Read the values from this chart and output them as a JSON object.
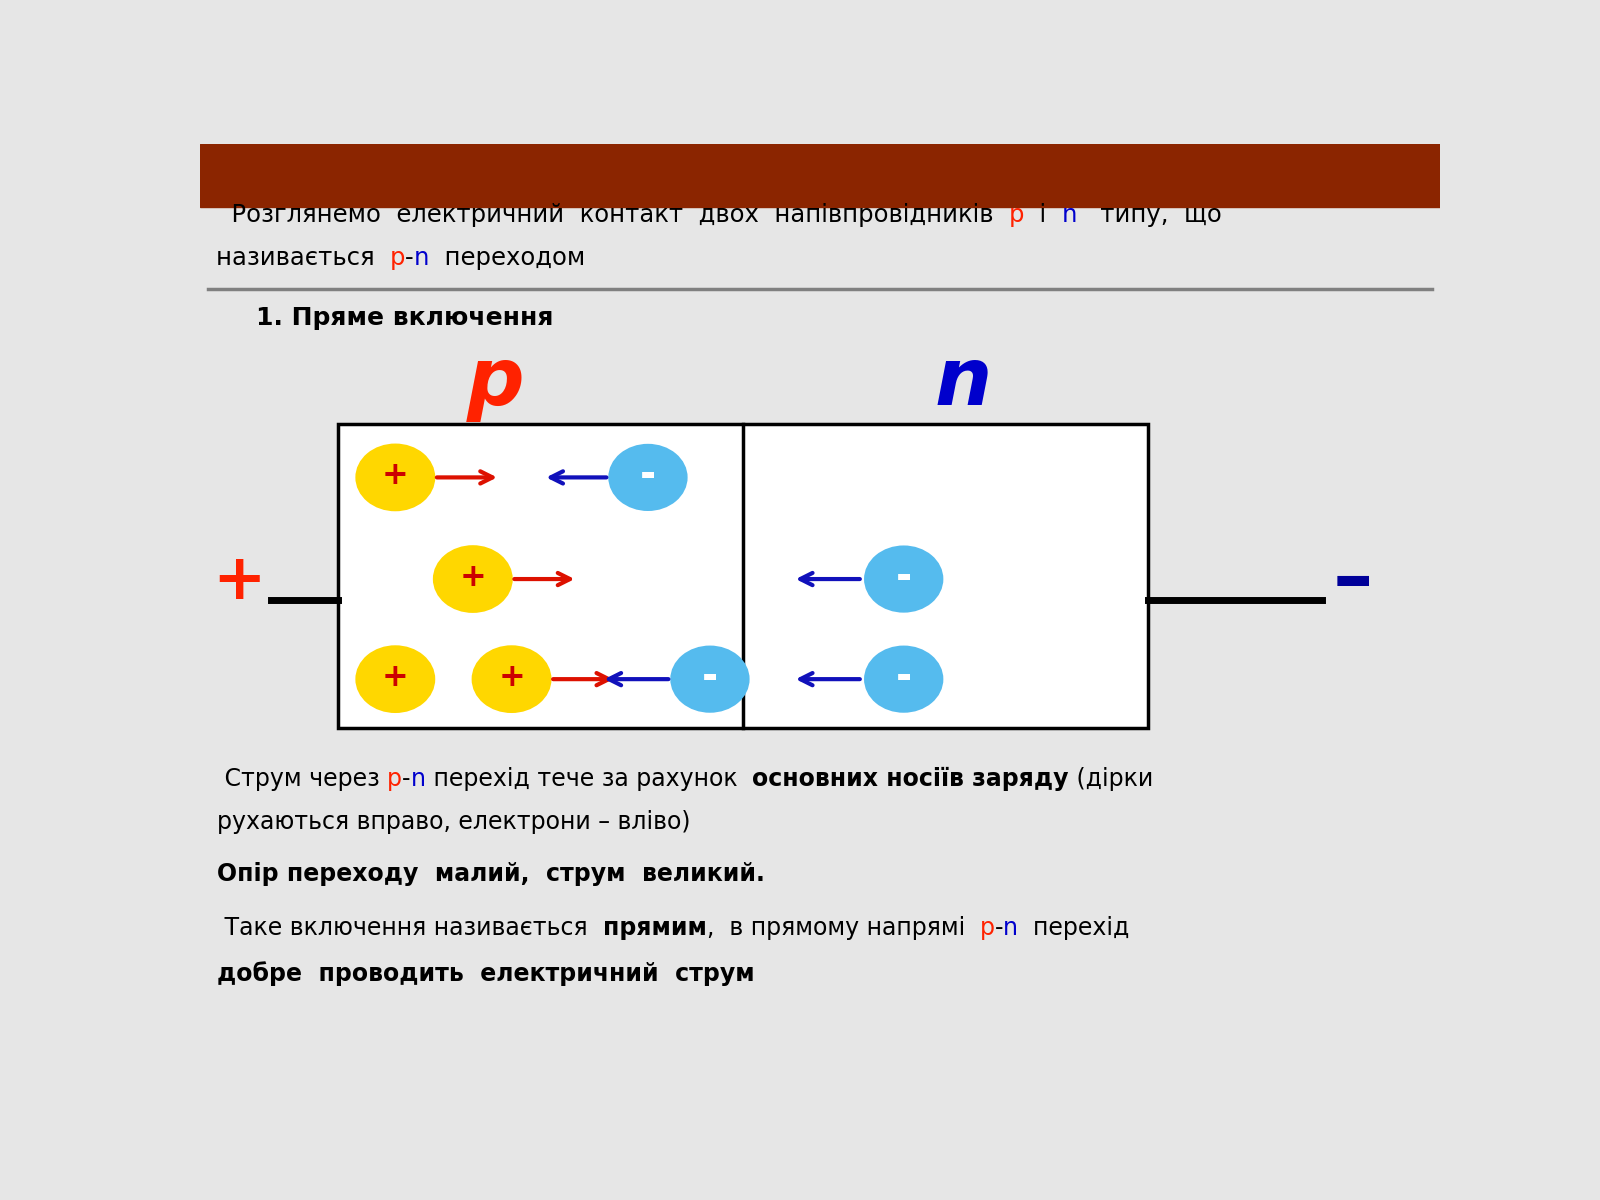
{
  "bg_color": "#e6e6e6",
  "header_color": "#8B2500",
  "red": "#FF2200",
  "blue": "#0000CC",
  "darkblue": "#000099",
  "black": "#000000",
  "yellow": "#FFD700",
  "cyan": "#55BBEE",
  "arrow_red": "#DD1100",
  "arrow_blue": "#1111BB",
  "title_seg1": "  Розглянемо  електричний  контакт  двох  напівпровідників  ",
  "title_p": "p",
  "title_i": "  і  ",
  "title_n": "n",
  "title_end": "   типу,  що",
  "title2_start": "називається  ",
  "title2_pn1": "p",
  "title2_dash": "-",
  "title2_pn2": "n",
  "title2_end": "  переходом",
  "section": "1. Пряме включення",
  "label_p": "p",
  "label_n": "n",
  "plus_sign": "+",
  "minus_sign": "–",
  "text1a": " Струм через ",
  "text1b": "p",
  "text1c": "-",
  "text1d": "n",
  "text1e": " перехід тече за рахунок  ",
  "text1f": "основних носіїв заряду",
  "text1g": " (дірки",
  "text1h": "рухаються вправо, електрони – вліво)",
  "text2": "Опір переходу  малий,  струм  великий.",
  "text3a": " Таке включення називається  ",
  "text3b": "прямим",
  "text3c": ",  в прямому напрямі  ",
  "text3d": "p",
  "text3e": "-",
  "text3f": "n",
  "text3g": "  перехід",
  "text3h": "добре  проводить  електричний  струм"
}
